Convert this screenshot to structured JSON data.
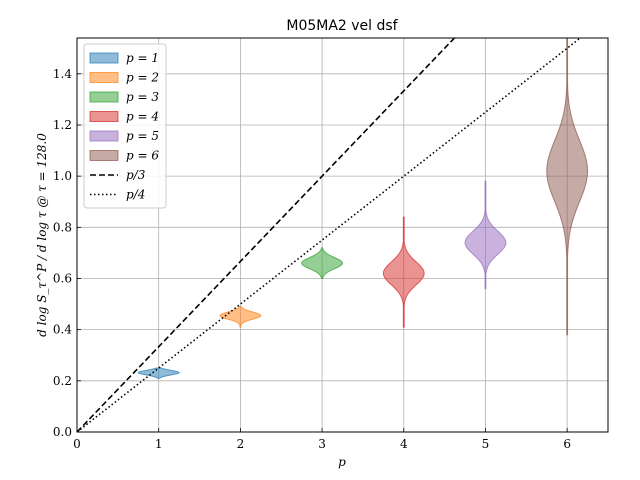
{
  "chart_data": {
    "type": "violin",
    "title": "M05MA2 vel dsf",
    "xlabel": "p",
    "ylabel": "d log S_τ^P / d log τ @ τ = 128.0",
    "xlim": [
      0,
      6.5
    ],
    "ylim": [
      0,
      1.54
    ],
    "xticks": [
      0,
      1,
      2,
      3,
      4,
      5,
      6
    ],
    "yticks": [
      0.0,
      0.2,
      0.4,
      0.6,
      0.8,
      1.0,
      1.2,
      1.4
    ],
    "grid": true,
    "legend_position": "top-left",
    "series": [
      {
        "name": "p = 1",
        "x": 1,
        "color": "#1f77b4",
        "median": 0.232,
        "min": 0.21,
        "max": 0.25,
        "halfwidth": 0.25,
        "spread": 0.009
      },
      {
        "name": "p = 2",
        "x": 2,
        "color": "#ff7f0e",
        "median": 0.455,
        "min": 0.41,
        "max": 0.49,
        "halfwidth": 0.25,
        "spread": 0.014
      },
      {
        "name": "p = 3",
        "x": 3,
        "color": "#2ca02c",
        "median": 0.66,
        "min": 0.6,
        "max": 0.72,
        "halfwidth": 0.25,
        "spread": 0.022
      },
      {
        "name": "p = 4",
        "x": 4,
        "color": "#d62728",
        "median": 0.62,
        "min": 0.41,
        "max": 0.84,
        "halfwidth": 0.25,
        "spread": 0.045
      },
      {
        "name": "p = 5",
        "x": 5,
        "color": "#9467bd",
        "median": 0.74,
        "min": 0.56,
        "max": 0.98,
        "halfwidth": 0.25,
        "spread": 0.045
      },
      {
        "name": "p = 6",
        "x": 6,
        "color": "#8c564b",
        "median": 1.02,
        "min": 0.38,
        "max": 1.54,
        "halfwidth": 0.25,
        "spread": 0.12
      }
    ],
    "reference_lines": [
      {
        "name": "p/3",
        "slope": 0.3333,
        "style": "dashed"
      },
      {
        "name": "p/4",
        "slope": 0.25,
        "style": "dotted"
      }
    ]
  }
}
